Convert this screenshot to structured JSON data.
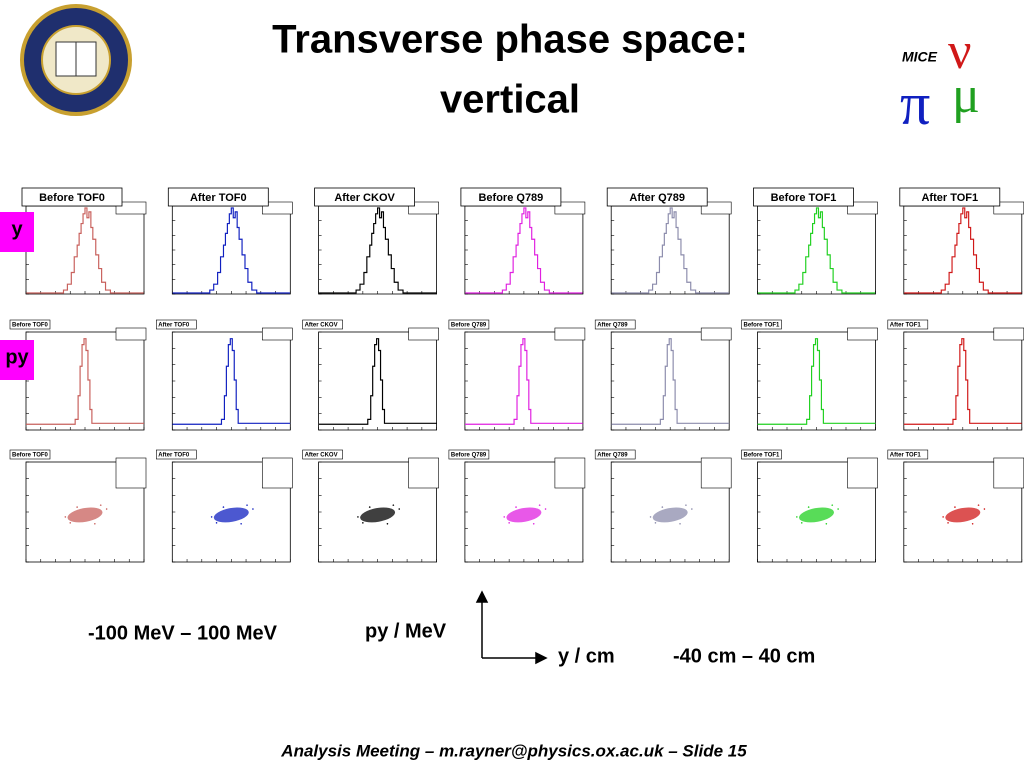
{
  "header": {
    "title_line1": "Transverse phase space:",
    "title_line2": "vertical",
    "logo_right": "MICE"
  },
  "rows": [
    {
      "label": "y"
    },
    {
      "label": "py"
    },
    {
      "label": null
    }
  ],
  "columns": [
    {
      "title": "Before TOF0",
      "color": "#c8605c"
    },
    {
      "title": "After TOF0",
      "color": "#1020c0"
    },
    {
      "title": "After CKOV",
      "color": "#000000"
    },
    {
      "title": "Before Q789",
      "color": "#e020e0"
    },
    {
      "title": "After Q789",
      "color": "#8c8cac"
    },
    {
      "title": "Before TOF1",
      "color": "#20d020"
    },
    {
      "title": "After TOF1",
      "color": "#d01818"
    }
  ],
  "annotations": {
    "py_range": "-100 MeV – 100 MeV",
    "py_axis": "py / MeV",
    "y_axis": "y / cm",
    "y_range": "-40 cm – 40 cm"
  },
  "footer": "Analysis Meeting – m.rayner@physics.ox.ac.uk – Slide 15"
}
